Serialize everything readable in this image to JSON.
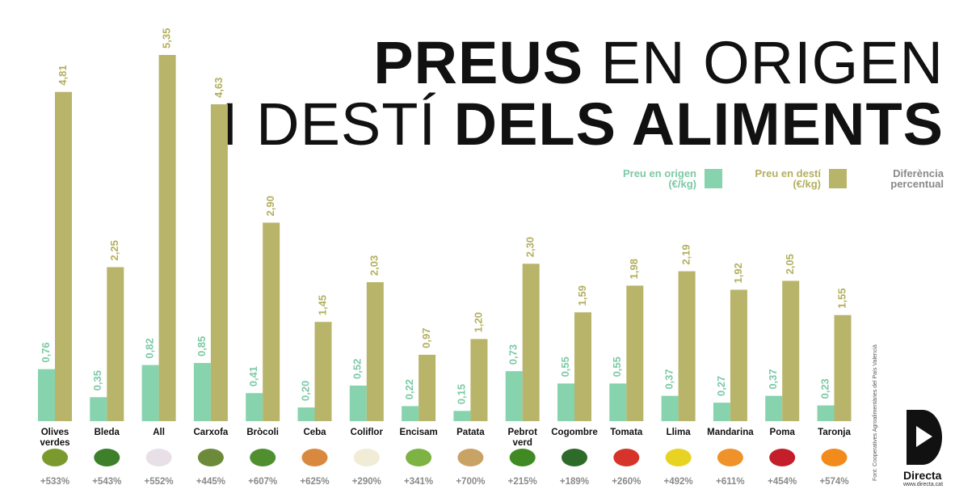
{
  "title": {
    "line1_bold": "PREUS",
    "line1_light": " EN ORIGEN",
    "line2_light": "I DESTÍ ",
    "line2_bold": "DELS ALIMENTS"
  },
  "legend": {
    "origin": "Preu en origen (€/kg)",
    "dest": "Preu en destí (€/kg)",
    "diff": "Diferència percentual"
  },
  "source": "Font: Cooperatives Agroalimentàries del País Valencià",
  "logo": {
    "name": "Directa",
    "url": "www.directa.cat"
  },
  "colors": {
    "origin": "#86d3ad",
    "dest": "#b8b46a",
    "dest_label": "#b3af5e",
    "origin_label": "#7ccaa5",
    "pct_label": "#8a8a8a"
  },
  "chart_data": {
    "type": "bar",
    "title": "PREUS EN ORIGEN I DESTÍ DELS ALIMENTS",
    "categories": [
      "Olives verdes",
      "Bleda",
      "All",
      "Carxofa",
      "Bròcoli",
      "Ceba",
      "Coliflor",
      "Encisam",
      "Patata",
      "Pebrot verd",
      "Cogombre",
      "Tomata",
      "Llima",
      "Mandarina",
      "Poma",
      "Taronja"
    ],
    "series": [
      {
        "name": "Preu en origen (€/kg)",
        "values": [
          0.76,
          0.35,
          0.82,
          0.85,
          0.41,
          0.2,
          0.52,
          0.22,
          0.15,
          0.73,
          0.55,
          0.55,
          0.37,
          0.27,
          0.37,
          0.23
        ]
      },
      {
        "name": "Preu en destí (€/kg)",
        "values": [
          4.81,
          2.25,
          5.35,
          4.63,
          2.9,
          1.45,
          2.03,
          0.97,
          1.2,
          2.3,
          1.59,
          1.98,
          2.19,
          1.92,
          2.05,
          1.55
        ]
      }
    ],
    "value_labels": {
      "origin": [
        "0,76",
        "0,35",
        "0,82",
        "0,85",
        "0,41",
        "0,20",
        "0,52",
        "0,22",
        "0,15",
        "0,73",
        "0,55",
        "0,55",
        "0,37",
        "0,27",
        "0,37",
        "0,23"
      ],
      "dest": [
        "4,81",
        "2,25",
        "5,35",
        "4,63",
        "2,90",
        "1,45",
        "2,03",
        "0,97",
        "1,20",
        "2,30",
        "1,59",
        "1,98",
        "2,19",
        "1,92",
        "2,05",
        "1,55"
      ]
    },
    "percent_diff": [
      "+533%",
      "+543%",
      "+552%",
      "+445%",
      "+607%",
      "+625%",
      "+290%",
      "+341%",
      "+700%",
      "+215%",
      "+189%",
      "+260%",
      "+492%",
      "+611%",
      "+454%",
      "+574%"
    ],
    "icons": [
      "olive-icon",
      "chard-icon",
      "garlic-icon",
      "artichoke-icon",
      "broccoli-icon",
      "onion-icon",
      "cauliflower-icon",
      "lettuce-icon",
      "potato-icon",
      "green-pepper-icon",
      "cucumber-icon",
      "tomato-icon",
      "lime-icon",
      "mandarin-icon",
      "apple-icon",
      "orange-icon"
    ],
    "icon_colors": [
      "#7a9a2e",
      "#3e7f2a",
      "#e8e0e6",
      "#6d8a3a",
      "#4f8f2f",
      "#d9893e",
      "#f0ecd6",
      "#7cb342",
      "#c9a265",
      "#3f8a22",
      "#2e6b2a",
      "#d6342b",
      "#e8d322",
      "#f0922a",
      "#c41e2a",
      "#f28a1c"
    ],
    "ylim": [
      0,
      5.35
    ],
    "grid": false,
    "legend_position": "top-right"
  }
}
